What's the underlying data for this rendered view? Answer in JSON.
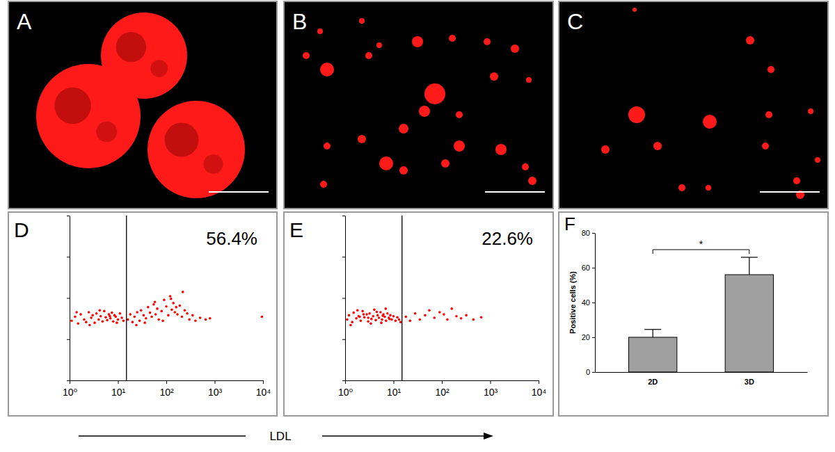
{
  "chart_data": [
    {
      "type": "image",
      "title": "A",
      "color": "#ff1a1a"
    },
    {
      "type": "image",
      "title": "B",
      "color": "#ff1a1a"
    },
    {
      "type": "image",
      "title": "C",
      "color": "#ff1a1a"
    },
    {
      "type": "scatter",
      "title": "D",
      "annotation": "56.4%",
      "xlabel": "LDL",
      "gate": 15,
      "x": [
        1.1,
        1.3,
        1.5,
        1.7,
        2,
        2.2,
        2.5,
        2.8,
        3,
        3.3,
        3.6,
        4,
        4.4,
        4.8,
        5.2,
        5.6,
        6,
        6.5,
        7,
        7.5,
        8,
        8.5,
        9,
        10,
        11,
        12,
        13,
        1.4,
        2.6,
        4.2,
        6.8,
        9.5,
        16,
        18,
        20,
        22,
        25,
        28,
        30,
        34,
        38,
        42,
        46,
        50,
        55,
        60,
        65,
        70,
        80,
        90,
        100,
        110,
        120,
        130,
        140,
        150,
        170,
        190,
        210,
        240,
        270,
        300,
        350,
        400,
        500,
        650,
        800,
        24,
        36,
        58,
        85,
        125,
        160,
        220,
        9500
      ],
      "y": [
        28,
        35,
        24,
        40,
        30,
        26,
        45,
        33,
        38,
        25,
        42,
        30,
        36,
        27,
        48,
        34,
        29,
        40,
        32,
        44,
        27,
        38,
        35,
        30,
        42,
        33,
        28,
        45,
        22,
        50,
        36,
        25,
        30,
        40,
        26,
        35,
        45,
        28,
        50,
        38,
        32,
        60,
        44,
        35,
        70,
        40,
        55,
        30,
        48,
        90,
        62,
        38,
        110,
        52,
        75,
        45,
        40,
        65,
        35,
        50,
        42,
        30,
        38,
        28,
        33,
        30,
        32,
        22,
        25,
        80,
        28,
        95,
        60,
        140,
        35
      ],
      "xlim": [
        1,
        10000
      ],
      "ylim": [
        1,
        10000
      ],
      "log": true,
      "xticks": [
        {
          "value": 1,
          "label": "10⁰"
        },
        {
          "value": 10,
          "label": "10¹"
        },
        {
          "value": 100,
          "label": "10²"
        },
        {
          "value": 1000,
          "label": "10³"
        },
        {
          "value": 10000,
          "label": "10⁴"
        }
      ],
      "yticks": [
        1,
        10,
        100,
        1000,
        10000
      ],
      "tick_labels": "x",
      "color": "#ff0000"
    },
    {
      "type": "scatter",
      "title": "E",
      "annotation": "22.6%",
      "gate": 15,
      "x": [
        1.1,
        1.2,
        1.4,
        1.5,
        1.7,
        1.9,
        2.1,
        2.3,
        2.5,
        2.8,
        3,
        3.2,
        3.5,
        3.8,
        4,
        4.3,
        4.7,
        5,
        5.4,
        5.8,
        6.2,
        6.6,
        7,
        7.5,
        8,
        8.6,
        9.2,
        10,
        11,
        12,
        13,
        14,
        1.3,
        1.8,
        2.4,
        3.4,
        4.5,
        5.6,
        6.9,
        8.3,
        2,
        3,
        6,
        18,
        22,
        28,
        35,
        45,
        55,
        70,
        90,
        110,
        130,
        160,
        200,
        250,
        320,
        450,
        650
      ],
      "y": [
        30,
        38,
        26,
        44,
        32,
        36,
        28,
        48,
        34,
        40,
        27,
        42,
        31,
        36,
        52,
        29,
        38,
        33,
        45,
        30,
        40,
        35,
        28,
        42,
        33,
        38,
        30,
        36,
        28,
        34,
        30,
        26,
        22,
        50,
        40,
        24,
        46,
        25,
        55,
        31,
        35,
        33,
        37,
        35,
        28,
        42,
        30,
        38,
        50,
        33,
        45,
        40,
        30,
        55,
        36,
        32,
        38,
        30,
        34
      ],
      "xlim": [
        1,
        10000
      ],
      "ylim": [
        1,
        10000
      ],
      "log": true,
      "xticks": [
        {
          "value": 1,
          "label": "10⁰"
        },
        {
          "value": 10,
          "label": "10¹"
        },
        {
          "value": 100,
          "label": "10²"
        },
        {
          "value": 1000,
          "label": "10³"
        },
        {
          "value": 10000,
          "label": "10⁴"
        }
      ],
      "yticks": [
        1,
        10,
        100,
        1000,
        10000
      ],
      "tick_labels": "x",
      "color": "#ff0000"
    },
    {
      "type": "bar",
      "title": "F",
      "categories": [
        "2D",
        "3D"
      ],
      "values": [
        20,
        56
      ],
      "errors": [
        4.5,
        10
      ],
      "ylabel": "Positive cells (%)",
      "ylim": [
        0,
        80
      ],
      "yticks": [
        0,
        20,
        40,
        60,
        80
      ],
      "annotation": "*",
      "color": "#a0a0a0"
    }
  ]
}
